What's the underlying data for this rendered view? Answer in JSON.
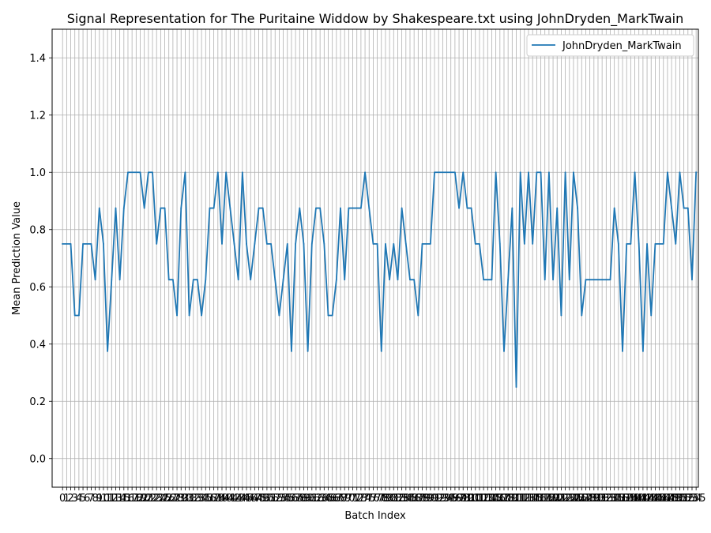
{
  "chart_data": {
    "type": "line",
    "title": "Signal Representation for The Puritaine Widdow by Shakespeare.txt using JohnDryden_MarkTwain",
    "xlabel": "Batch Index",
    "ylabel": "Mean Prediction Value",
    "xlim": [
      -2.55,
      155.55
    ],
    "ylim": [
      -0.1,
      1.5
    ],
    "yticks": [
      0.0,
      0.2,
      0.4,
      0.6,
      0.8,
      1.0,
      1.2,
      1.4
    ],
    "grid": true,
    "legend_position": "upper right",
    "series": [
      {
        "name": "JohnDryden_MarkTwain",
        "color": "#1f77b4",
        "x_start": 0,
        "values": [
          0.75,
          0.75,
          0.75,
          0.5,
          0.5,
          0.75,
          0.75,
          0.75,
          0.625,
          0.875,
          0.75,
          0.375,
          0.625,
          0.875,
          0.625,
          0.875,
          1.0,
          1.0,
          1.0,
          1.0,
          0.875,
          1.0,
          1.0,
          0.75,
          0.875,
          0.875,
          0.625,
          0.625,
          0.5,
          0.875,
          1.0,
          0.5,
          0.625,
          0.625,
          0.5,
          0.625,
          0.875,
          0.875,
          1.0,
          0.75,
          1.0,
          0.875,
          0.75,
          0.625,
          1.0,
          0.75,
          0.625,
          0.75,
          0.875,
          0.875,
          0.75,
          0.75,
          0.625,
          0.5,
          0.625,
          0.75,
          0.375,
          0.75,
          0.875,
          0.75,
          0.375,
          0.75,
          0.875,
          0.875,
          0.75,
          0.5,
          0.5,
          0.625,
          0.875,
          0.625,
          0.875,
          0.875,
          0.875,
          0.875,
          1.0,
          0.875,
          0.75,
          0.75,
          0.375,
          0.75,
          0.625,
          0.75,
          0.625,
          0.875,
          0.75,
          0.625,
          0.625,
          0.5,
          0.75,
          0.75,
          0.75,
          1.0,
          1.0,
          1.0,
          1.0,
          1.0,
          1.0,
          0.875,
          1.0,
          0.875,
          0.875,
          0.75,
          0.75,
          0.625,
          0.625,
          0.625,
          1.0,
          0.75,
          0.375,
          0.625,
          0.875,
          0.25,
          1.0,
          0.75,
          1.0,
          0.75,
          1.0,
          1.0,
          0.625,
          1.0,
          0.625,
          0.875,
          0.5,
          1.0,
          0.625,
          1.0,
          0.875,
          0.5,
          0.625,
          0.625,
          0.625,
          0.625,
          0.625,
          0.625,
          0.625,
          0.875,
          0.75,
          0.375,
          0.75,
          0.75,
          1.0,
          0.75,
          0.375,
          0.75,
          0.5,
          0.75,
          0.75,
          0.75,
          1.0,
          0.875,
          0.75,
          1.0,
          0.875,
          0.875,
          0.625,
          1.0
        ]
      }
    ]
  }
}
